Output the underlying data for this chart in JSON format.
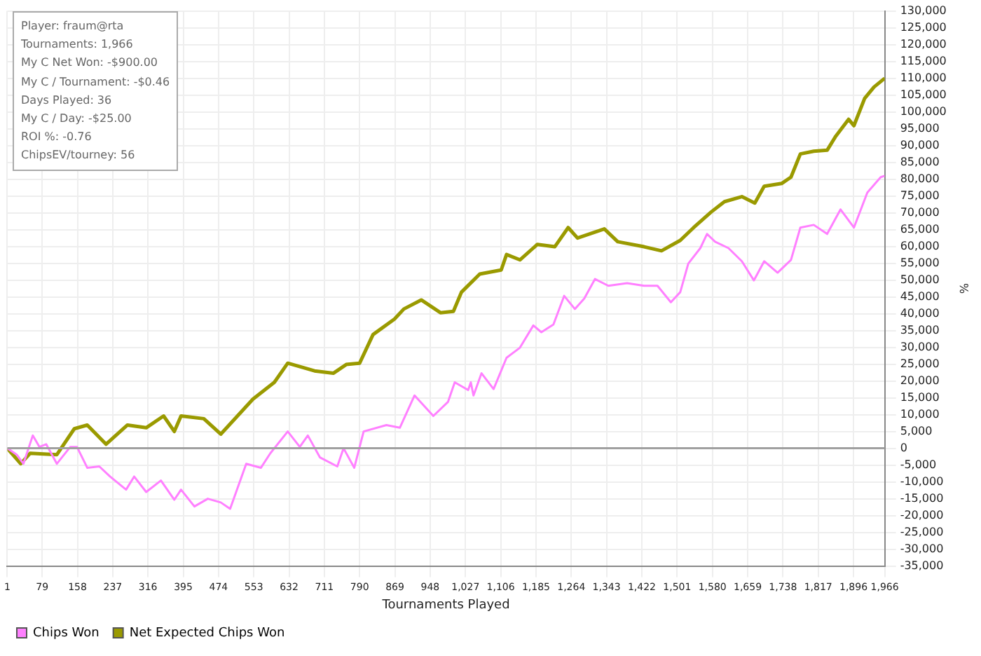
{
  "chart_data": {
    "type": "line",
    "xlabel": "Tournaments Played",
    "ylabel": "%",
    "annotations": [
      "Player: fraum@rta",
      "Tournaments: 1,966",
      "My C Net Won: -$900.00",
      "My C / Tournament: -$0.46",
      "Days Played: 36",
      "My C / Day: -$25.00",
      "ROI %: -0.76",
      "ChipsEV/tourney: 56"
    ],
    "xlim": [
      1,
      1966
    ],
    "xticks": [
      1,
      79,
      158,
      237,
      316,
      395,
      474,
      553,
      632,
      711,
      790,
      869,
      948,
      {
        "value": 1027,
        "label": "1,027"
      },
      {
        "value": 1106,
        "label": "1,106"
      },
      {
        "value": 1185,
        "label": "1,185"
      },
      {
        "value": 1264,
        "label": "1,264"
      },
      {
        "value": 1343,
        "label": "1,343"
      },
      {
        "value": 1422,
        "label": "1,422"
      },
      {
        "value": 1501,
        "label": "1,501"
      },
      {
        "value": 1580,
        "label": "1,580"
      },
      {
        "value": 1659,
        "label": "1,659"
      },
      {
        "value": 1738,
        "label": "1,738"
      },
      {
        "value": 1817,
        "label": "1,817"
      },
      {
        "value": 1896,
        "label": "1,896"
      },
      {
        "value": 1966,
        "label": "1,966"
      }
    ],
    "ylim": [
      -35000,
      130000
    ],
    "yticks": [
      {
        "value": -35000,
        "label": "-35,000"
      },
      {
        "value": -30000,
        "label": "-30,000"
      },
      {
        "value": -25000,
        "label": "-25,000"
      },
      {
        "value": -20000,
        "label": "-20,000"
      },
      {
        "value": -15000,
        "label": "-15,000"
      },
      {
        "value": -10000,
        "label": "-10,000"
      },
      {
        "value": -5000,
        "label": "-5,000"
      },
      0,
      {
        "value": 5000,
        "label": "5,000"
      },
      {
        "value": 10000,
        "label": "10,000"
      },
      {
        "value": 15000,
        "label": "15,000"
      },
      {
        "value": 20000,
        "label": "20,000"
      },
      {
        "value": 25000,
        "label": "25,000"
      },
      {
        "value": 30000,
        "label": "30,000"
      },
      {
        "value": 35000,
        "label": "35,000"
      },
      {
        "value": 40000,
        "label": "40,000"
      },
      {
        "value": 45000,
        "label": "45,000"
      },
      {
        "value": 50000,
        "label": "50,000"
      },
      {
        "value": 55000,
        "label": "55,000"
      },
      {
        "value": 60000,
        "label": "60,000"
      },
      {
        "value": 65000,
        "label": "65,000"
      },
      {
        "value": 70000,
        "label": "70,000"
      },
      {
        "value": 75000,
        "label": "75,000"
      },
      {
        "value": 80000,
        "label": "80,000"
      },
      {
        "value": 85000,
        "label": "85,000"
      },
      {
        "value": 90000,
        "label": "90,000"
      },
      {
        "value": 95000,
        "label": "95,000"
      },
      {
        "value": 100000,
        "label": "100,000"
      },
      {
        "value": 105000,
        "label": "105,000"
      },
      {
        "value": 110000,
        "label": "110,000"
      },
      {
        "value": 115000,
        "label": "115,000"
      },
      {
        "value": 120000,
        "label": "120,000"
      },
      {
        "value": 125000,
        "label": "125,000"
      },
      {
        "value": 130000,
        "label": "130,000"
      }
    ],
    "grid": true,
    "legend": "bottom left",
    "marker": "none",
    "line_style": "solid",
    "ref_lines": [
      {
        "axis": "y",
        "value": 0,
        "color": "#a0a0a0"
      }
    ],
    "series": [
      {
        "name": "Chips Won",
        "color": "#ff80ff",
        "x": [
          1,
          22,
          37,
          58,
          73,
          88,
          112,
          142,
          157,
          180,
          207,
          231,
          267,
          285,
          312,
          345,
          375,
          390,
          420,
          450,
          479,
          500,
          536,
          569,
          590,
          629,
          656,
          674,
          701,
          740,
          754,
          778,
          799,
          850,
          880,
          913,
          955,
          988,
          1003,
          1033,
          1039,
          1045,
          1063,
          1090,
          1119,
          1149,
          1179,
          1197,
          1224,
          1248,
          1272,
          1293,
          1317,
          1347,
          1389,
          1427,
          1457,
          1487,
          1508,
          1526,
          1553,
          1568,
          1586,
          1616,
          1646,
          1673,
          1696,
          1726,
          1756,
          1777,
          1807,
          1837,
          1867,
          1897,
          1927,
          1957,
          1966
        ],
        "values": [
          0,
          -1900,
          -4600,
          3800,
          400,
          1200,
          -4600,
          400,
          400,
          -5800,
          -5400,
          -8400,
          -12300,
          -8400,
          -13000,
          -9600,
          -15300,
          -12300,
          -17300,
          -15000,
          -16100,
          -18000,
          -4600,
          -5800,
          -1500,
          5000,
          400,
          3800,
          -2700,
          -5400,
          0,
          -5800,
          5000,
          6900,
          6100,
          15700,
          9600,
          13800,
          19600,
          17300,
          19600,
          15700,
          22300,
          17600,
          26900,
          29900,
          36500,
          34500,
          36800,
          45300,
          41400,
          44500,
          50300,
          48300,
          49100,
          48300,
          48300,
          43400,
          46400,
          54900,
          59500,
          63700,
          61400,
          59500,
          55600,
          49900,
          55600,
          52200,
          56000,
          65600,
          66400,
          63700,
          71000,
          65600,
          76000,
          80600,
          81000
        ]
      },
      {
        "name": "Net Expected Chips Won",
        "color": "#9a9a00",
        "x": [
          1,
          31,
          52,
          112,
          151,
          180,
          222,
          270,
          312,
          351,
          375,
          390,
          441,
          479,
          551,
          599,
          629,
          689,
          731,
          760,
          790,
          820,
          868,
          889,
          928,
          971,
          1000,
          1018,
          1059,
          1107,
          1119,
          1149,
          1188,
          1227,
          1257,
          1278,
          1338,
          1368,
          1427,
          1466,
          1508,
          1538,
          1577,
          1607,
          1646,
          1675,
          1696,
          1735,
          1756,
          1777,
          1807,
          1837,
          1855,
          1885,
          1897,
          1921,
          1942,
          1966
        ],
        "values": [
          0,
          -4600,
          -1500,
          -1900,
          5800,
          6900,
          1200,
          6900,
          6100,
          9600,
          5000,
          9600,
          8800,
          4200,
          14600,
          19600,
          25300,
          23000,
          22300,
          24900,
          25300,
          33800,
          38400,
          41400,
          44100,
          40300,
          40700,
          46400,
          51800,
          53000,
          57600,
          56000,
          60600,
          59900,
          65600,
          62500,
          65200,
          61400,
          59900,
          58700,
          61800,
          65600,
          70200,
          73300,
          74800,
          72900,
          77900,
          78700,
          80600,
          87500,
          88300,
          88600,
          92500,
          97800,
          95900,
          104000,
          107400,
          110000
        ]
      }
    ]
  }
}
